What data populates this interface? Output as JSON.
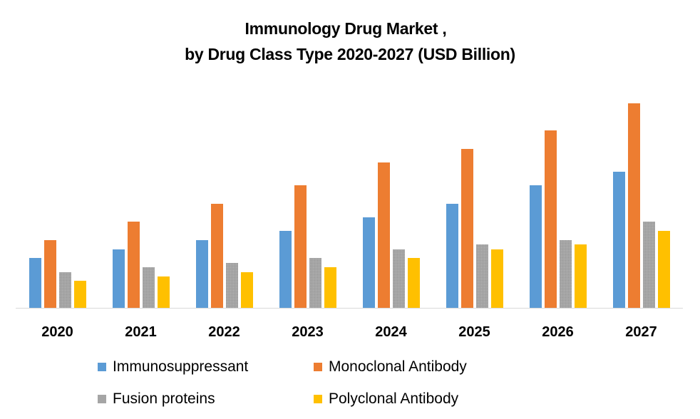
{
  "chart_data": {
    "type": "bar",
    "title": "Immunology Drug Market ,",
    "subtitle": "by Drug Class Type 2020-2027 (USD Billion)",
    "xlabel": "",
    "ylabel": "",
    "grid": false,
    "legend_position": "bottom",
    "value_note": "No y-axis shown; values are relative estimates",
    "ylim": [
      0,
      30
    ],
    "categories": [
      "2020",
      "2021",
      "2022",
      "2023",
      "2024",
      "2025",
      "2026",
      "2027"
    ],
    "series": [
      {
        "name": "Immunosuppressant",
        "color": "#5B9BD5",
        "values": [
          7.0,
          8.2,
          9.5,
          10.8,
          12.7,
          14.6,
          17.2,
          19.1
        ]
      },
      {
        "name": "Monoclonal Antibody",
        "color": "#ED7D31",
        "values": [
          9.5,
          12.1,
          14.6,
          17.2,
          20.4,
          22.3,
          24.9,
          28.7
        ]
      },
      {
        "name": "Fusion proteins",
        "color": "#A5A5A5",
        "values": [
          5.0,
          5.7,
          6.3,
          7.0,
          8.2,
          8.9,
          9.5,
          12.1
        ]
      },
      {
        "name": "Polyclonal Antibody",
        "color": "#FFC000",
        "values": [
          3.8,
          4.4,
          5.0,
          5.7,
          7.0,
          8.2,
          8.9,
          10.8
        ]
      }
    ]
  }
}
